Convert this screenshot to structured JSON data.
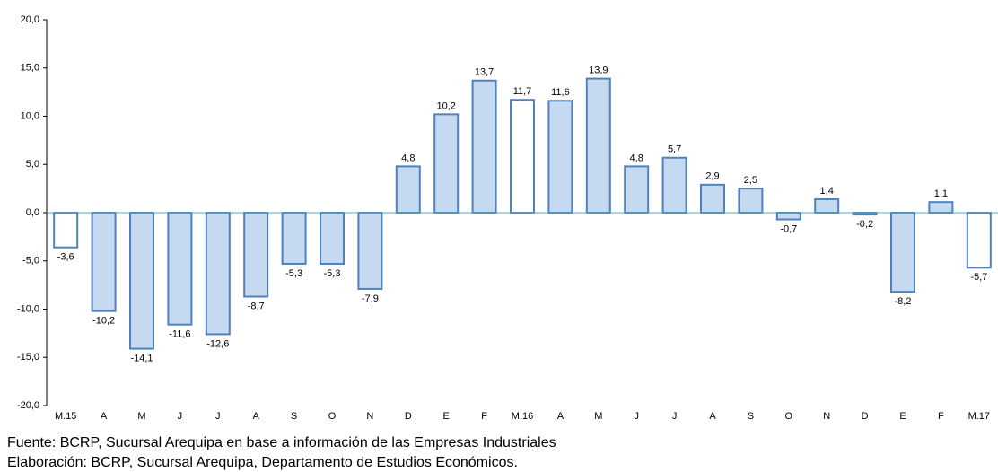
{
  "chart_data": {
    "type": "bar",
    "categories": [
      "M.15",
      "A",
      "M",
      "J",
      "J",
      "A",
      "S",
      "O",
      "N",
      "D",
      "E",
      "F",
      "M.16",
      "A",
      "M",
      "J",
      "J",
      "A",
      "S",
      "O",
      "N",
      "D",
      "E",
      "F",
      "M.17"
    ],
    "values": [
      -3.6,
      -10.2,
      -14.1,
      -11.6,
      -12.6,
      -8.7,
      -5.3,
      -5.3,
      -7.9,
      4.8,
      10.2,
      13.7,
      11.7,
      11.6,
      13.9,
      4.8,
      5.7,
      2.9,
      2.5,
      -0.7,
      1.4,
      -0.2,
      -8.2,
      1.1,
      -5.7
    ],
    "value_labels": [
      "-3,6",
      "-10,2",
      "-14,1",
      "-11,6",
      "-12,6",
      "-8,7",
      "-5,3",
      "-5,3",
      "-7,9",
      "4,8",
      "10,2",
      "13,7",
      "11,7",
      "11,6",
      "13,9",
      "4,8",
      "5,7",
      "2,9",
      "2,5",
      "-0,7",
      "1,4",
      "-0,2",
      "-8,2",
      "1,1",
      "-5,7"
    ],
    "colors": [
      "#ffffff",
      "#c5d9f1",
      "#c5d9f1",
      "#c5d9f1",
      "#c5d9f1",
      "#c5d9f1",
      "#c5d9f1",
      "#c5d9f1",
      "#c5d9f1",
      "#c5d9f1",
      "#c5d9f1",
      "#c5d9f1",
      "#ffffff",
      "#c5d9f1",
      "#c5d9f1",
      "#c5d9f1",
      "#c5d9f1",
      "#c5d9f1",
      "#c5d9f1",
      "#c5d9f1",
      "#c5d9f1",
      "#c5d9f1",
      "#c5d9f1",
      "#c5d9f1",
      "#ffffff"
    ],
    "stroke": "#4f81bd",
    "ylim": [
      -20,
      20
    ],
    "yticks": [
      {
        "value": -20,
        "label": "-20,0"
      },
      {
        "value": -15,
        "label": "-15,0"
      },
      {
        "value": -10,
        "label": "-10,0"
      },
      {
        "value": -5,
        "label": "-5,0"
      },
      {
        "value": 0,
        "label": "0,0"
      },
      {
        "value": 5,
        "label": "5,0"
      },
      {
        "value": 10,
        "label": "10,0"
      },
      {
        "value": 15,
        "label": "15,0"
      },
      {
        "value": 20,
        "label": "20,0"
      }
    ],
    "notes": [
      "Fuente: BCRP, Sucursal Arequipa en base a información de las Empresas Industriales",
      "Elaboración: BCRP, Sucursal Arequipa, Departamento de Estudios Económicos."
    ]
  }
}
